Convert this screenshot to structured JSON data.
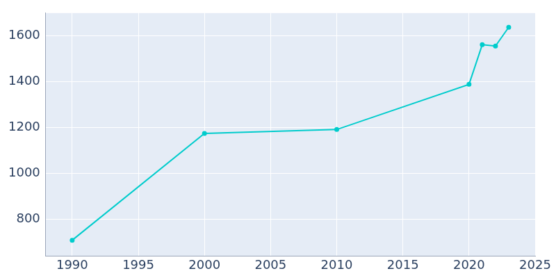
{
  "chart_data": {
    "type": "line",
    "x": [
      1990,
      2000,
      2010,
      2020,
      2021,
      2022,
      2023
    ],
    "values": [
      709,
      1175,
      1192,
      1389,
      1562,
      1556,
      1638
    ],
    "color": "#00cccc",
    "marker": "circle",
    "xlim": [
      1988,
      2025
    ],
    "xticks": [
      1990,
      1995,
      2000,
      2005,
      2010,
      2015,
      2020,
      2025
    ],
    "ylim": [
      640,
      1700
    ],
    "yticks": [
      800,
      1000,
      1200,
      1400,
      1600
    ],
    "grid": true
  }
}
